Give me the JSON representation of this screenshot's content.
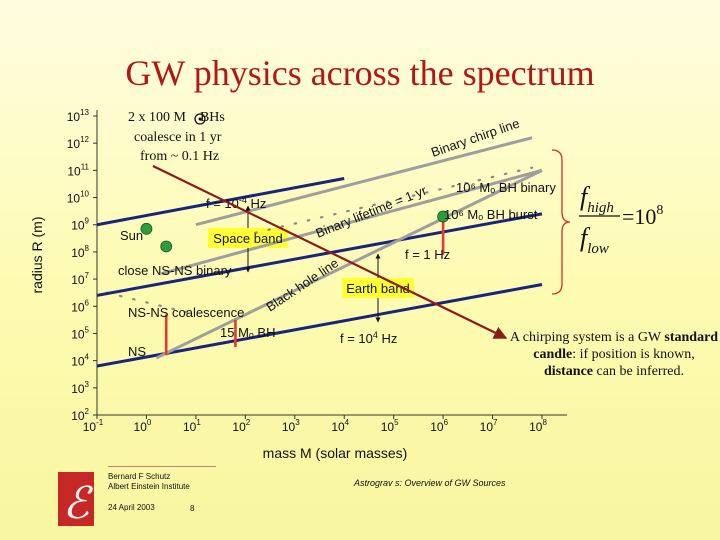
{
  "title": "GW physics across the spectrum",
  "annotation": {
    "line1": "2 x 100 M",
    "line1_after": "BHs",
    "line2": "coalesce in 1 yr",
    "line3": "from ~ 0.1 Hz"
  },
  "chart_data": {
    "type": "line",
    "xlabel": "mass M (solar masses)",
    "ylabel": "radius R (m)",
    "xscale": "log",
    "yscale": "log",
    "xlim": [
      -1,
      8
    ],
    "ylim": [
      2,
      13
    ],
    "x_ticks": [
      -1,
      0,
      1,
      2,
      3,
      4,
      5,
      6,
      7,
      8
    ],
    "y_ticks": [
      2,
      3,
      4,
      5,
      6,
      7,
      8,
      9,
      10,
      11,
      12,
      13
    ],
    "tick_base": "10",
    "lines": [
      {
        "label": "f = 10",
        "label_sup": "-4",
        "label_unit": " Hz",
        "color": "#1a237e",
        "x1": -1,
        "y1": 9.0,
        "x2": 4.0,
        "y2": 10.7
      },
      {
        "label": "f = 1 Hz",
        "color": "#1a237e",
        "x1": -1,
        "y1": 6.4,
        "x2": 8.0,
        "y2": 9.4
      },
      {
        "label": "f = 10",
        "label_sup": "4",
        "label_unit": " Hz",
        "color": "#1a237e",
        "x1": -1,
        "y1": 3.8,
        "x2": 8.0,
        "y2": 6.8
      },
      {
        "label": "Binary chirp line",
        "color": "#9e9e9e",
        "x1": 1.0,
        "y1": 9.0,
        "x2": 7.8,
        "y2": 12.2
      },
      {
        "label": "Binary lifetime = 1 yr",
        "color": "#9e9e9e",
        "x1": 0.3,
        "y1": 7.2,
        "x2": 8.0,
        "y2": 11.0
      },
      {
        "label": "Black hole line",
        "color": "#9e9e9e",
        "x1": 0.2,
        "y1": 4.1,
        "x2": 8.0,
        "y2": 11.0
      }
    ],
    "dotted_lines": [
      {
        "x1": -0.8,
        "y1": 6.5,
        "x2": 1.0,
        "y2": 5.7
      },
      {
        "x1": 2.2,
        "y1": 8.7,
        "x2": 7.8,
        "y2": 11.1
      }
    ],
    "points": [
      {
        "label": "Sun",
        "x": 0.0,
        "y": 8.85,
        "color": "#2e9e3a"
      },
      {
        "label": "close NS-NS binary",
        "x": 0.4,
        "y": 8.2,
        "color": "#2e9e3a"
      },
      {
        "label": "10⁶ Mₒ BH binary",
        "x": 6.0,
        "y": 9.3,
        "color": "#2e9e3a"
      }
    ],
    "labels": [
      {
        "text": "NS-NS coalescence",
        "x": -0.4,
        "y": 5.7
      },
      {
        "text": "NS",
        "x": -0.4,
        "y": 4.2
      },
      {
        "text": "15 Mₒ BH",
        "x": 1.4,
        "y": 4.8
      },
      {
        "text": "10⁶ Mₒ BH binary",
        "x": 6.4,
        "y": 9.9
      },
      {
        "text": "10⁶ Mₒ BH burst",
        "x": 6.0,
        "y": 9.05
      }
    ],
    "bands": [
      {
        "label": "Space band",
        "color": "#ffff33"
      },
      {
        "label": "Earth band",
        "color": "#ffff33"
      }
    ],
    "red_segments": [
      {
        "x": 0.4,
        "y1": 4.2,
        "y2": 5.7
      },
      {
        "x": 1.8,
        "y1": 4.5,
        "y2": 5.5
      },
      {
        "x": 6.0,
        "y1": 7.9,
        "y2": 9.1
      }
    ],
    "arrow": {
      "from": [
        0.1,
        9.9
      ],
      "to": [
        5.9,
        3.8
      ],
      "color": "#8b1a1a"
    }
  },
  "formula": {
    "num": "f",
    "num_sub": "high",
    "den": "f",
    "den_sub": "low",
    "rhs": "=10",
    "rhs_sup": "8"
  },
  "note": {
    "p1": "A chirping system is a GW ",
    "b1": "standard candle",
    "p2": ": if position is known, ",
    "b2": "distance",
    "p3": " can be inferred."
  },
  "footer": {
    "author": "Bernard F Schutz",
    "institute": "Albert Einstein Institute",
    "date": "24 April 2003",
    "page": "8",
    "subtitle": "Astrograv s: Overview of GW Sources"
  },
  "colors": {
    "title": "#b01818",
    "axis_lines": "#1a237e",
    "gray_lines": "#9e9e9e",
    "band": "#ffff33",
    "marker": "#2e9e3a",
    "red": "#e53935",
    "arrow": "#8b1a1a"
  }
}
